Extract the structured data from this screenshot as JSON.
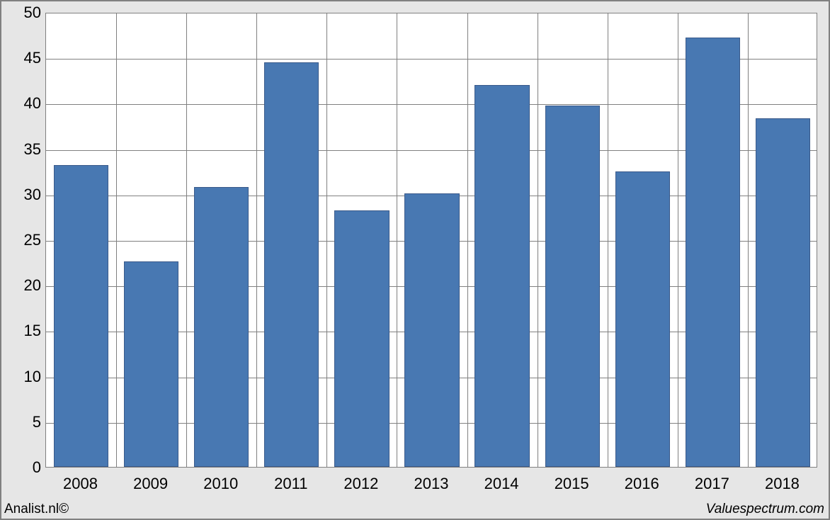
{
  "chart": {
    "type": "bar",
    "categories": [
      "2008",
      "2009",
      "2010",
      "2011",
      "2012",
      "2013",
      "2014",
      "2015",
      "2016",
      "2017",
      "2018"
    ],
    "values": [
      33.2,
      22.6,
      30.8,
      44.5,
      28.2,
      30.1,
      42.0,
      39.7,
      32.5,
      47.2,
      38.3
    ],
    "ylim": [
      0,
      50
    ],
    "ytick_step": 5,
    "bar_color": "#4878b2",
    "bar_border_color": "#3a5a8a",
    "bar_width_ratio": 0.78,
    "plot_bg": "#ffffff",
    "panel_bg": "#e6e6e6",
    "grid_color": "#808080",
    "tick_fontsize": 22,
    "tick_color": "#000000",
    "footer_fontsize": 19
  },
  "footer": {
    "left": "Analist.nl©",
    "right": "Valuespectrum.com"
  }
}
